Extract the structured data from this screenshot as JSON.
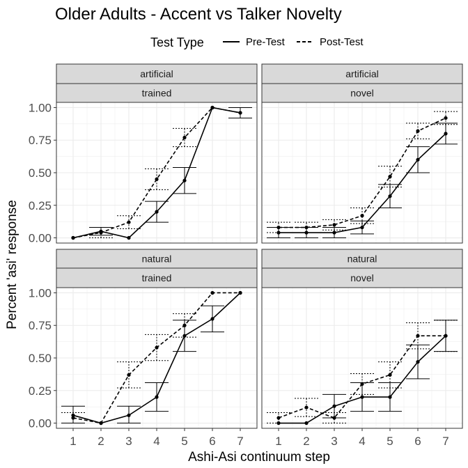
{
  "chart_data": {
    "type": "line",
    "title": "Older Adults - Accent vs Talker Novelty",
    "xlabel": "Ashi-Asi continuum step",
    "ylabel": "Percent 'asi' response",
    "legend": {
      "title": "Test Type",
      "position": "top",
      "entries": [
        {
          "label": "Pre-Test",
          "line": "solid"
        },
        {
          "label": "Post-Test",
          "line": "dashed"
        }
      ]
    },
    "x_ticks": [
      "1",
      "2",
      "3",
      "4",
      "5",
      "6",
      "7"
    ],
    "y_ticks": [
      "0.00",
      "0.25",
      "0.50",
      "0.75",
      "1.00"
    ],
    "ylim": [
      -0.04,
      1.04
    ],
    "xlim": [
      0.4,
      7.6
    ],
    "grid": true,
    "panels": [
      {
        "strip_top": "artificial",
        "strip_bottom": "trained",
        "series": [
          {
            "name": "Pre-Test",
            "x": [
              1,
              2,
              3,
              4,
              5,
              6,
              7
            ],
            "y": [
              0.0,
              0.05,
              0.0,
              0.2,
              0.44,
              1.0,
              0.96
            ],
            "err": [
              0.0,
              0.03,
              0.0,
              0.08,
              0.1,
              0.0,
              0.04
            ]
          },
          {
            "name": "Post-Test",
            "x": [
              1,
              2,
              3,
              4,
              5,
              6,
              7
            ],
            "y": [
              0.0,
              0.04,
              0.12,
              0.45,
              0.77,
              1.0,
              0.96
            ],
            "err": [
              0.0,
              0.04,
              0.05,
              0.08,
              0.07,
              0.0,
              0.04
            ]
          }
        ]
      },
      {
        "strip_top": "artificial",
        "strip_bottom": "novel",
        "series": [
          {
            "name": "Pre-Test",
            "x": [
              1,
              2,
              3,
              4,
              5,
              6,
              7
            ],
            "y": [
              0.04,
              0.04,
              0.04,
              0.08,
              0.32,
              0.6,
              0.8
            ],
            "err": [
              0.04,
              0.04,
              0.04,
              0.05,
              0.09,
              0.1,
              0.08
            ]
          },
          {
            "name": "Post-Test",
            "x": [
              1,
              2,
              3,
              4,
              5,
              6,
              7
            ],
            "y": [
              0.08,
              0.08,
              0.1,
              0.17,
              0.47,
              0.82,
              0.92
            ],
            "err": [
              0.04,
              0.04,
              0.04,
              0.06,
              0.08,
              0.06,
              0.05
            ]
          }
        ]
      },
      {
        "strip_top": "natural",
        "strip_bottom": "trained",
        "series": [
          {
            "name": "Pre-Test",
            "x": [
              1,
              2,
              3,
              4,
              5,
              6,
              7
            ],
            "y": [
              0.06,
              0.0,
              0.06,
              0.2,
              0.67,
              0.8,
              1.0
            ],
            "err": [
              0.07,
              0.0,
              0.07,
              0.11,
              0.12,
              0.1,
              0.0
            ]
          },
          {
            "name": "Post-Test",
            "x": [
              1,
              2,
              3,
              4,
              5,
              6,
              7
            ],
            "y": [
              0.04,
              0.0,
              0.37,
              0.58,
              0.75,
              1.0,
              1.0
            ],
            "err": [
              0.04,
              0.0,
              0.1,
              0.1,
              0.09,
              0.0,
              0.0
            ]
          }
        ]
      },
      {
        "strip_top": "natural",
        "strip_bottom": "novel",
        "series": [
          {
            "name": "Pre-Test",
            "x": [
              1,
              2,
              3,
              4,
              5,
              6,
              7
            ],
            "y": [
              0.0,
              0.0,
              0.13,
              0.2,
              0.2,
              0.47,
              0.67
            ],
            "err": [
              0.0,
              0.0,
              0.09,
              0.11,
              0.11,
              0.13,
              0.12
            ]
          },
          {
            "name": "Post-Test",
            "x": [
              1,
              2,
              3,
              4,
              5,
              6,
              7
            ],
            "y": [
              0.04,
              0.12,
              0.04,
              0.3,
              0.37,
              0.67,
              0.67
            ],
            "err": [
              0.04,
              0.07,
              0.04,
              0.08,
              0.1,
              0.1,
              0.12
            ]
          }
        ]
      }
    ]
  }
}
